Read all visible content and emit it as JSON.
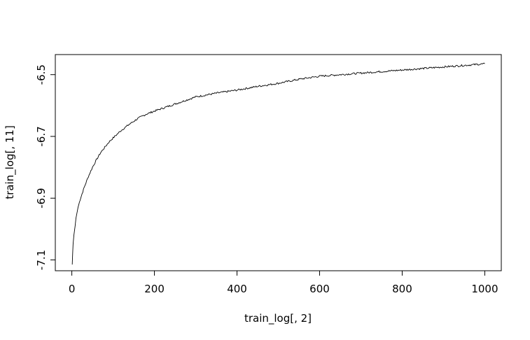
{
  "chart_data": {
    "type": "line",
    "title": "",
    "xlabel": "train_log[, 2]",
    "ylabel": "train_log[, 11]",
    "xlim": [
      -40,
      1040
    ],
    "ylim": [
      -7.135,
      -6.435
    ],
    "xticks": [
      0,
      200,
      400,
      600,
      800,
      1000
    ],
    "yticks": [
      -7.1,
      -6.9,
      -6.7,
      -6.5
    ],
    "xtick_labels": [
      "0",
      "200",
      "400",
      "600",
      "800",
      "1000"
    ],
    "ytick_labels": [
      "-7.1",
      "-6.9",
      "-6.7",
      "-6.5"
    ],
    "grid": false,
    "legend": "none",
    "line_color": "#000000",
    "series": [
      {
        "x": [
          1,
          2,
          3,
          5,
          8,
          10,
          15,
          20,
          25,
          30,
          40,
          50,
          60,
          70,
          80,
          90,
          100,
          120,
          140,
          160,
          180,
          200,
          250,
          300,
          350,
          400,
          450,
          500,
          550,
          600,
          650,
          700,
          750,
          800,
          850,
          900,
          950,
          1000
        ],
        "y": [
          -7.115,
          -7.08,
          -7.05,
          -7.02,
          -6.99,
          -6.965,
          -6.93,
          -6.905,
          -6.885,
          -6.865,
          -6.83,
          -6.8,
          -6.775,
          -6.752,
          -6.735,
          -6.718,
          -6.705,
          -6.68,
          -6.66,
          -6.642,
          -6.628,
          -6.618,
          -6.595,
          -6.572,
          -6.56,
          -6.55,
          -6.538,
          -6.528,
          -6.515,
          -6.505,
          -6.5,
          -6.495,
          -6.49,
          -6.485,
          -6.48,
          -6.475,
          -6.47,
          -6.465
        ]
      }
    ]
  }
}
